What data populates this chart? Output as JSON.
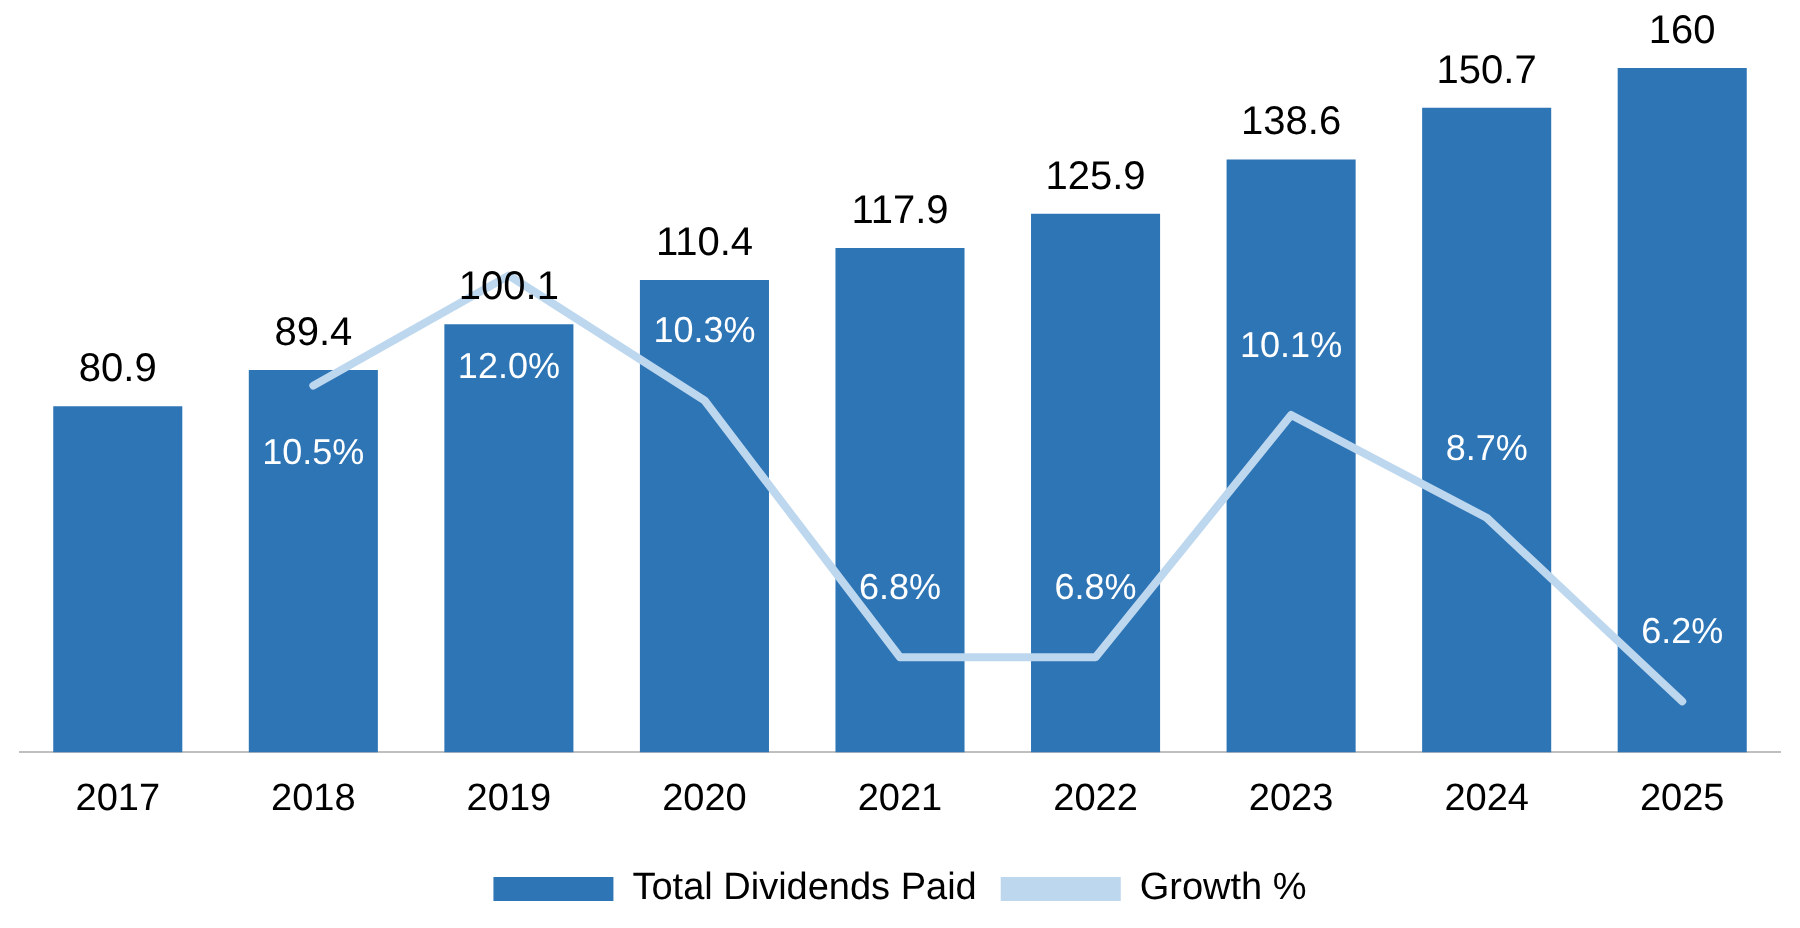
{
  "chart_data": {
    "type": "bar",
    "categories": [
      "2017",
      "2018",
      "2019",
      "2020",
      "2021",
      "2022",
      "2023",
      "2024",
      "2025"
    ],
    "series": [
      {
        "name": "Total Dividends Paid",
        "color": "#2e75b6",
        "values": [
          80.9,
          89.4,
          100.1,
          110.4,
          117.9,
          125.9,
          138.6,
          150.7,
          160
        ]
      },
      {
        "name": "Growth %",
        "type": "line",
        "axis": "y2",
        "color": "#bdd7ee",
        "values": [
          null,
          10.5,
          12.0,
          10.3,
          6.8,
          6.8,
          10.1,
          8.7,
          6.2
        ],
        "value_labels": [
          null,
          "10.5%",
          "12.0%",
          "10.3%",
          "6.8%",
          "6.8%",
          "10.1%",
          "8.7%",
          "6.2%"
        ]
      }
    ],
    "data_labels": true,
    "legend": "bottom",
    "grid": false,
    "marker": "none",
    "tick_labels": "x"
  }
}
